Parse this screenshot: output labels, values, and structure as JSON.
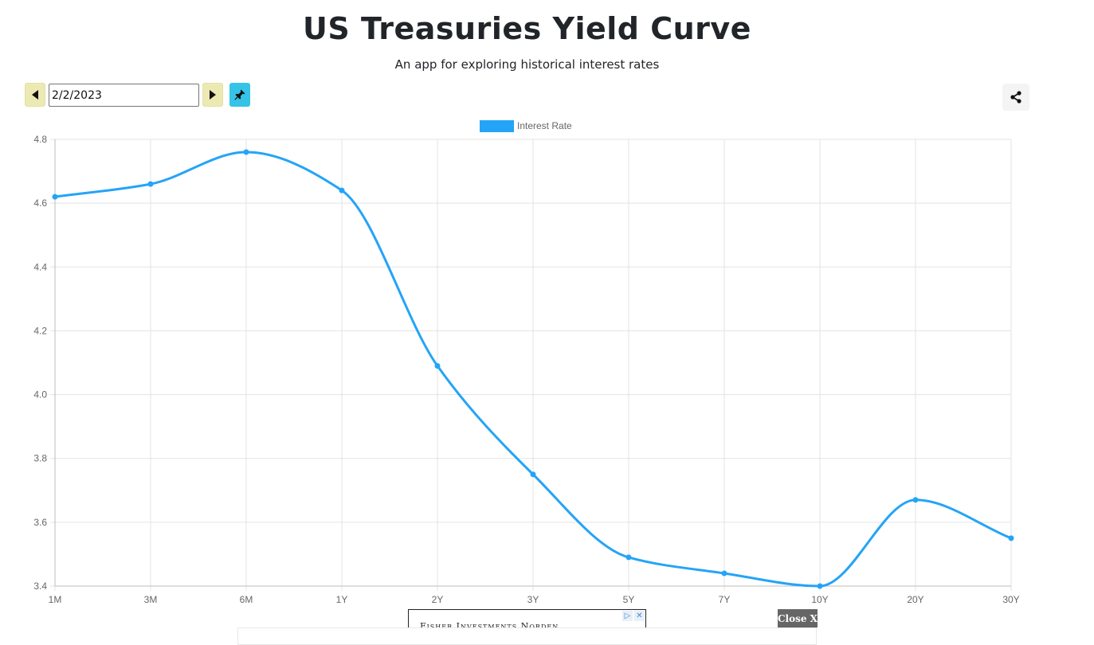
{
  "header": {
    "title": "US Treasuries Yield Curve",
    "subtitle": "An app for exploring historical interest rates"
  },
  "toolbar": {
    "date_value": "2/2/2023",
    "prev_icon": "caret-left-icon",
    "next_icon": "caret-right-icon",
    "pin_icon": "pin-icon",
    "share_icon": "share-icon"
  },
  "ad": {
    "text": "Fisher Investments Norden",
    "close_label": "Close X"
  },
  "chart_data": {
    "type": "line",
    "categories": [
      "1M",
      "3M",
      "6M",
      "1Y",
      "2Y",
      "3Y",
      "5Y",
      "7Y",
      "10Y",
      "20Y",
      "30Y"
    ],
    "series": [
      {
        "name": "Interest Rate",
        "values": [
          4.62,
          4.66,
          4.76,
          4.64,
          4.09,
          3.75,
          3.49,
          3.44,
          3.4,
          3.67,
          3.55
        ],
        "color": "#24a4f7"
      }
    ],
    "yticks": [
      "3.4",
      "3.6",
      "3.8",
      "4.0",
      "4.2",
      "4.4",
      "4.6",
      "4.8"
    ],
    "ylim": [
      3.4,
      4.8
    ],
    "grid": true,
    "legend_position": "top",
    "smooth": true
  }
}
